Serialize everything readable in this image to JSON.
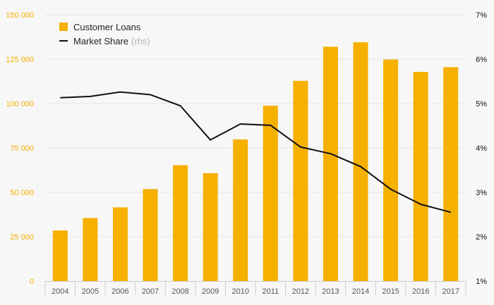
{
  "chart_data": {
    "type": "bar+line",
    "categories": [
      "2004",
      "2005",
      "2006",
      "2007",
      "2008",
      "2009",
      "2010",
      "2011",
      "2012",
      "2013",
      "2014",
      "2015",
      "2016",
      "2017"
    ],
    "series": [
      {
        "name": "Customer Loans",
        "type": "bar",
        "axis": "left",
        "values": [
          28500,
          35500,
          41500,
          51800,
          65300,
          60800,
          79800,
          98800,
          112800,
          132000,
          134500,
          124800,
          117800,
          120500
        ]
      },
      {
        "name": "Market Share",
        "type": "line",
        "axis": "right",
        "values": [
          5.13,
          5.16,
          5.26,
          5.2,
          4.95,
          4.18,
          4.54,
          4.51,
          4.02,
          3.87,
          3.58,
          3.07,
          2.73,
          2.55
        ]
      }
    ],
    "legend": {
      "loans_label": "Customer Loans",
      "share_label": "Market Share",
      "share_suffix": "(rhs)"
    },
    "yleft": {
      "ylim": [
        0,
        150000
      ],
      "ticks": [
        0,
        25000,
        50000,
        75000,
        100000,
        125000,
        150000
      ],
      "tick_labels": [
        "0",
        "25 000",
        "50 000",
        "75 000",
        "100 000",
        "125 000",
        "150 000"
      ]
    },
    "yright": {
      "ylim": [
        1,
        7
      ],
      "ticks": [
        1,
        2,
        3,
        4,
        5,
        6,
        7
      ],
      "tick_labels": [
        "1%",
        "2%",
        "3%",
        "4%",
        "5%",
        "6%",
        "7%"
      ]
    },
    "colors": {
      "bar": "#f5b000",
      "line": "#111111",
      "left_ticks": "#f5b000",
      "right_ticks": "#111111",
      "x_ticks": "#555555",
      "grid": "#e6e6e6",
      "axis": "#cccccc"
    }
  }
}
